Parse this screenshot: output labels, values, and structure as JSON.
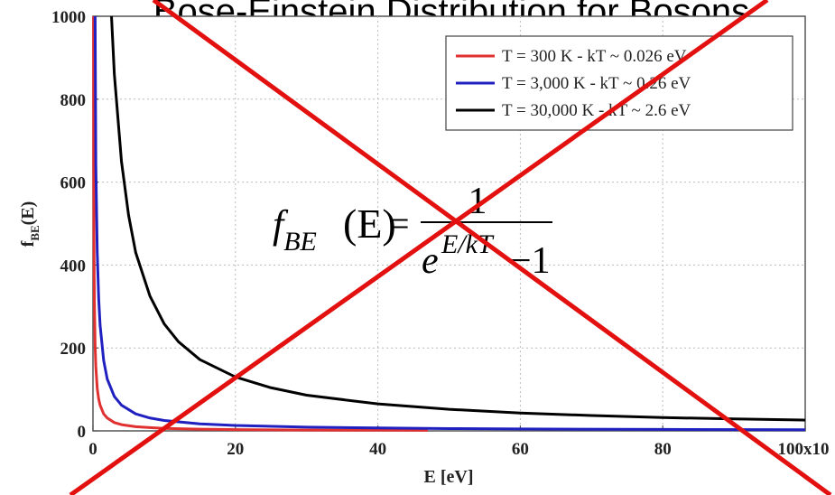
{
  "chart_data": {
    "type": "line",
    "title": "Bose-Einstein Distribution for Bosons",
    "xlabel": "E [eV]",
    "ylabel_main": "f",
    "ylabel_sub": "BE",
    "ylabel_tail": "(E)",
    "xlim": [
      0,
      100
    ],
    "ylim": [
      0,
      1000
    ],
    "x_ticks": [
      {
        "value": 0,
        "label": "0"
      },
      {
        "value": 20,
        "label": "20"
      },
      {
        "value": 40,
        "label": "40"
      },
      {
        "value": 60,
        "label": "60"
      },
      {
        "value": 80,
        "label": "80"
      },
      {
        "value": 100,
        "label": "100x10"
      }
    ],
    "y_ticks": [
      {
        "value": 0,
        "label": "0"
      },
      {
        "value": 200,
        "label": "200"
      },
      {
        "value": 400,
        "label": "400"
      },
      {
        "value": 600,
        "label": "600"
      },
      {
        "value": 800,
        "label": "800"
      },
      {
        "value": 1000,
        "label": "1000"
      }
    ],
    "grid": "dotted",
    "legend_position": "top-right",
    "series": [
      {
        "name": "T = 300 K - kT ~ 0.026 eV",
        "color": "#e03030",
        "x": [
          0.08,
          0.1,
          0.15,
          0.2,
          0.3,
          0.4,
          0.6,
          0.8,
          1,
          1.5,
          2,
          3,
          4,
          6,
          8,
          10,
          15,
          20,
          30,
          40,
          47
        ],
        "y": [
          1000,
          640,
          420,
          310,
          205,
          155,
          102,
          77,
          62,
          41,
          31,
          20,
          15,
          10,
          8,
          6,
          4,
          3,
          2,
          1.5,
          1.3
        ]
      },
      {
        "name": "T = 3,000 K - kT ~ 0.26 eV",
        "color": "#2020c0",
        "x": [
          0.3,
          0.4,
          0.6,
          0.8,
          1,
          1.5,
          2,
          3,
          4,
          6,
          8,
          10,
          15,
          20,
          30,
          40,
          50,
          60,
          80,
          100
        ],
        "y": [
          1000,
          640,
          430,
          320,
          255,
          170,
          125,
          83,
          62,
          41,
          31,
          25,
          17,
          13,
          9,
          7,
          5.5,
          4.5,
          3.5,
          2.8
        ]
      },
      {
        "name": "T = 30,000 K - kT ~ 2.6 eV",
        "color": "#000000",
        "x": [
          2.6,
          3,
          4,
          5,
          6,
          8,
          10,
          12,
          15,
          20,
          25,
          30,
          40,
          50,
          60,
          70,
          80,
          90,
          100
        ],
        "y": [
          1000,
          860,
          650,
          520,
          430,
          325,
          258,
          215,
          172,
          130,
          104,
          86,
          65,
          52,
          43,
          37,
          32,
          29,
          26
        ]
      }
    ],
    "annotation": {
      "f": "f",
      "sub": "BE",
      "arg": "(E)",
      "eq": "=",
      "num": "1",
      "base": "e",
      "exp": "E/kT",
      "minus": "−1"
    }
  },
  "overlay": {
    "color": "#e31010"
  }
}
